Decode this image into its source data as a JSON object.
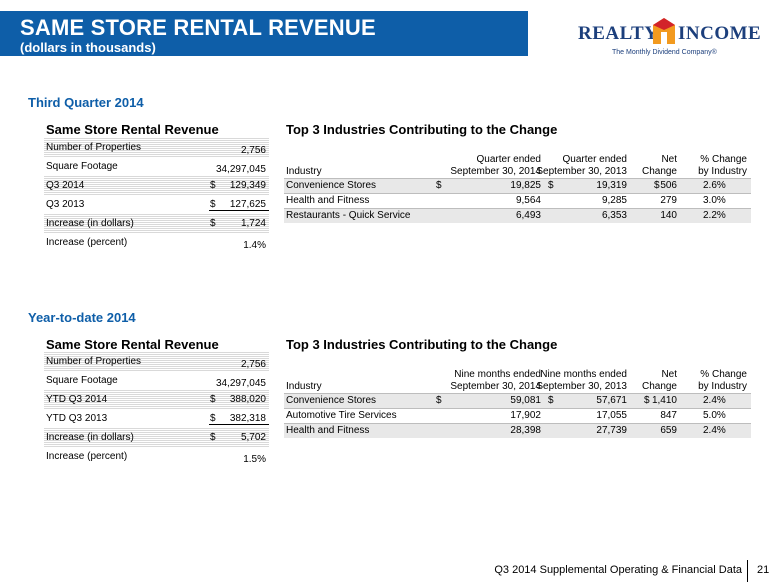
{
  "header": {
    "title": "SAME STORE RENTAL REVENUE",
    "subtitle": "(dollars in thousands)",
    "logo_left": "REALTY",
    "logo_right": "INCOME",
    "logo_tagline": "The Monthly Dividend Company®"
  },
  "q3": {
    "section": "Third Quarter 2014",
    "stats_title": "Same Store Rental Revenue",
    "stats": [
      {
        "label": "Number of Properties",
        "dollar": "",
        "value": "2,756"
      },
      {
        "label": "Square Footage",
        "dollar": "",
        "value": "34,297,045"
      },
      {
        "label": "Q3 2014",
        "dollar": "$",
        "value": "129,349"
      },
      {
        "label": "Q3 2013",
        "dollar": "$",
        "value": "127,625"
      },
      {
        "label": "Increase (in dollars)",
        "dollar": "$",
        "value": "1,724"
      },
      {
        "label": "Increase (percent)",
        "dollar": "",
        "value": "1.4%"
      }
    ],
    "table_title": "Top 3 Industries Contributing to the Change",
    "columns": {
      "industry": "Industry",
      "c1a": "Quarter ended",
      "c1b": "September 30, 2014",
      "c2a": "Quarter ended",
      "c2b": "September 30, 2013",
      "c3a": "Net",
      "c3b": "Change",
      "c4a": "% Change",
      "c4b": "by Industry"
    },
    "rows": [
      {
        "industry": "Convenience Stores",
        "d1": "$",
        "v1": "19,825",
        "d2": "$",
        "v2": "19,319",
        "d3": "$",
        "v3": "506",
        "pct": "2.6%"
      },
      {
        "industry": "Health and Fitness",
        "d1": "",
        "v1": "9,564",
        "d2": "",
        "v2": "9,285",
        "d3": "",
        "v3": "279",
        "pct": "3.0%"
      },
      {
        "industry": "Restaurants - Quick Service",
        "d1": "",
        "v1": "6,493",
        "d2": "",
        "v2": "6,353",
        "d3": "",
        "v3": "140",
        "pct": "2.2%"
      }
    ]
  },
  "ytd": {
    "section": "Year-to-date 2014",
    "stats_title": "Same Store Rental Revenue",
    "stats": [
      {
        "label": "Number of Properties",
        "dollar": "",
        "value": "2,756"
      },
      {
        "label": "Square Footage",
        "dollar": "",
        "value": "34,297,045"
      },
      {
        "label": "YTD Q3 2014",
        "dollar": "$",
        "value": "388,020"
      },
      {
        "label": "YTD Q3 2013",
        "dollar": "$",
        "value": "382,318"
      },
      {
        "label": "Increase (in dollars)",
        "dollar": "$",
        "value": "5,702"
      },
      {
        "label": "Increase (percent)",
        "dollar": "",
        "value": "1.5%"
      }
    ],
    "table_title": "Top 3 Industries Contributing to the Change",
    "columns": {
      "industry": "Industry",
      "c1a": "Nine months ended",
      "c1b": "September 30, 2014",
      "c2a": "Nine months ended",
      "c2b": "September 30, 2013",
      "c3a": "Net",
      "c3b": "Change",
      "c4a": "% Change",
      "c4b": "by Industry"
    },
    "rows": [
      {
        "industry": "Convenience Stores",
        "d1": "$",
        "v1": "59,081",
        "d2": "$",
        "v2": "57,671",
        "d3": "$",
        "v3": "1,410",
        "pct": "2.4%"
      },
      {
        "industry": "Automotive Tire Services",
        "d1": "",
        "v1": "17,902",
        "d2": "",
        "v2": "17,055",
        "d3": "",
        "v3": "847",
        "pct": "5.0%"
      },
      {
        "industry": "Health and Fitness",
        "d1": "",
        "v1": "28,398",
        "d2": "",
        "v2": "27,739",
        "d3": "",
        "v3": "659",
        "pct": "2.4%"
      }
    ]
  },
  "footer": {
    "text": "Q3 2014 Supplemental Operating & Financial Data",
    "page": "21"
  }
}
